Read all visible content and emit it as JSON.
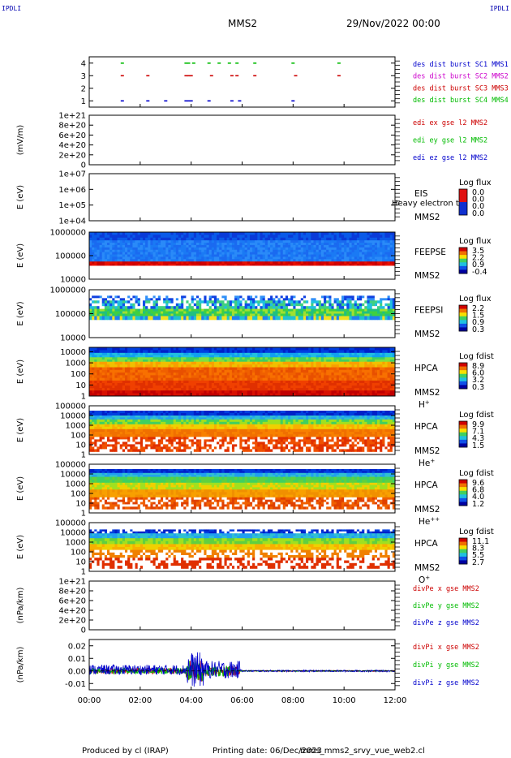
{
  "header": {
    "corner_left": "IPDLI",
    "corner_right": "IPDLI",
    "spacecraft": "MMS2",
    "date": "29/Nov/2022 00:00"
  },
  "footer": {
    "produced_by": "Produced by cl (IRAP)",
    "printing_date": "Printing date: 06/Dec/2023",
    "filename": "mms_mms2_srvy_vue_web2.cl"
  },
  "chart_data": {
    "type": "stacked-timeseries",
    "x_ticks": [
      "00:00",
      "02:00",
      "04:00",
      "06:00",
      "08:00",
      "10:00",
      "12:00"
    ],
    "xlim": [
      0,
      12
    ],
    "panels": [
      {
        "type": "scatter",
        "ylabel": "",
        "ylim": [
          0.5,
          4.5
        ],
        "y_ticks": [
          "1",
          "2",
          "3",
          "4"
        ],
        "legend": [
          {
            "label": "des dist burst SC1 MMS1",
            "color": "#0000cc"
          },
          {
            "label": "des dist burst SC2 MMS2",
            "color": "#cc00cc"
          },
          {
            "label": "des dist burst SC3 MMS3",
            "color": "#cc0000"
          },
          {
            "label": "des dist burst SC4 MMS4",
            "color": "#00bb00"
          }
        ],
        "series": [
          {
            "level": 4,
            "color": "#00bb00",
            "x": [
              1.3,
              3.8,
              3.9,
              4.1,
              4.7,
              5.1,
              5.5,
              5.8,
              6.5,
              8.0,
              9.8
            ]
          },
          {
            "level": 3,
            "color": "#cc0000",
            "x": [
              1.3,
              2.3,
              3.8,
              3.9,
              4.0,
              4.8,
              5.6,
              5.8,
              6.5,
              8.1,
              9.8
            ]
          },
          {
            "level": 2,
            "color": "#cc00cc",
            "x": []
          },
          {
            "level": 1,
            "color": "#0000cc",
            "x": [
              1.3,
              2.3,
              3.0,
              3.8,
              3.9,
              4.0,
              4.7,
              5.6,
              5.9,
              8.0
            ]
          }
        ]
      },
      {
        "type": "line",
        "ylabel": "(mV/m)",
        "y_ticks": [
          "0",
          "2e+20",
          "4e+20",
          "6e+20",
          "8e+20",
          "1e+21"
        ],
        "ylim": [
          0,
          1e+21
        ],
        "zero_dashed": true,
        "legend": [
          {
            "label": "edi ex gse l2 MMS2",
            "color": "#cc0000"
          },
          {
            "label": "edi ey gse l2 MMS2",
            "color": "#00bb00"
          },
          {
            "label": "edi ez gse l2 MMS2",
            "color": "#0000cc"
          }
        ]
      },
      {
        "type": "heatmap",
        "ylabel": "E (eV)",
        "y_ticks": [
          "1e+04",
          "1e+05",
          "1e+06",
          "1e+07"
        ],
        "ylog": [
          4,
          7
        ],
        "instrument": "EIS",
        "sc_label": "MMS2",
        "note": "Heavy electron to",
        "cbar_title": "Log flux",
        "cbar_ticks": [
          "0.0",
          "0.0",
          "0.0",
          "0.0"
        ],
        "empty": true
      },
      {
        "type": "heatmap",
        "ylabel": "E (eV)",
        "y_ticks": [
          "10000",
          "100000",
          "1000000"
        ],
        "ylog": [
          4,
          6
        ],
        "instrument": "FEEPSE",
        "sc_label": "MMS2",
        "cbar_title": "Log flux",
        "cbar_ticks": [
          "3.5",
          "2.2",
          "0.9",
          "-0.4"
        ],
        "bands": [
          {
            "from": 5.65,
            "to": 6.0,
            "colors": [
              "#0a3ad8",
              "#0a5ae8"
            ]
          },
          {
            "from": 4.75,
            "to": 5.65,
            "colors": [
              "#1a6af0",
              "#2a8af8",
              "#1a7af4"
            ]
          },
          {
            "from": 4.57,
            "to": 4.75,
            "colors": [
              "#d80000",
              "#e81000",
              "#c80000"
            ]
          },
          {
            "from": 4.0,
            "to": 4.57,
            "colors": [
              "#ffffff"
            ]
          }
        ]
      },
      {
        "type": "heatmap",
        "ylabel": "E (eV)",
        "y_ticks": [
          "10000",
          "100000",
          "1000000"
        ],
        "ylog": [
          4,
          6
        ],
        "instrument": "FEEPSI",
        "sc_label": "MMS2",
        "cbar_title": "Log flux",
        "cbar_ticks": [
          "2.2",
          "1.5",
          "0.9",
          "0.3"
        ],
        "bands": [
          {
            "from": 5.55,
            "to": 5.75,
            "colors": [
              "#ffffff",
              "#1040e0",
              "#3090f8",
              "#ffffff"
            ]
          },
          {
            "from": 5.2,
            "to": 5.55,
            "colors": [
              "#1050e8",
              "#20c0e0",
              "#40d080",
              "#ffffff"
            ]
          },
          {
            "from": 4.9,
            "to": 5.2,
            "colors": [
              "#40d040",
              "#a0e030",
              "#20c080"
            ]
          },
          {
            "from": 4.75,
            "to": 4.9,
            "colors": [
              "#20c0d0",
              "#2080f0",
              "#f0e020"
            ]
          }
        ]
      },
      {
        "type": "heatmap",
        "ylabel": "E (eV)",
        "y_ticks": [
          "1",
          "10",
          "100",
          "1000",
          "10000"
        ],
        "ylog": [
          0,
          4.4
        ],
        "instrument": "HPCA",
        "sc_label": "MMS2",
        "species": "H+",
        "cbar_title": "Log fdist",
        "cbar_ticks": [
          "8.9",
          "6.0",
          "3.2",
          "0.3"
        ],
        "bands": [
          {
            "from": 3.9,
            "to": 4.4,
            "colors": [
              "#0020c8",
              "#0040e0"
            ]
          },
          {
            "from": 3.5,
            "to": 3.9,
            "colors": [
              "#10a0f0",
              "#20c0e0"
            ]
          },
          {
            "from": 3.1,
            "to": 3.5,
            "colors": [
              "#40d060",
              "#80e040"
            ]
          },
          {
            "from": 2.6,
            "to": 3.1,
            "colors": [
              "#f0c000",
              "#f8a000"
            ]
          },
          {
            "from": 1.4,
            "to": 2.6,
            "colors": [
              "#f06000",
              "#f87000",
              "#e85000"
            ]
          },
          {
            "from": 0.5,
            "to": 1.4,
            "colors": [
              "#e03000",
              "#f04000"
            ]
          },
          {
            "from": 0.0,
            "to": 0.5,
            "colors": [
              "#c00000",
              "#d81000"
            ]
          }
        ]
      },
      {
        "type": "heatmap",
        "ylabel": "E (eV)",
        "y_ticks": [
          "1",
          "10",
          "100",
          "1000",
          "10000",
          "100000"
        ],
        "ylog": [
          0,
          5
        ],
        "instrument": "HPCA",
        "sc_label": "MMS2",
        "species": "He+",
        "cbar_title": "Log fdist",
        "cbar_ticks": [
          "9.9",
          "7.1",
          "4.3",
          "1.5"
        ],
        "bands": [
          {
            "from": 4.0,
            "to": 4.5,
            "colors": [
              "#0020c8",
              "#0040e0"
            ]
          },
          {
            "from": 3.6,
            "to": 4.0,
            "colors": [
              "#20a0f0",
              "#30c0d0"
            ]
          },
          {
            "from": 3.1,
            "to": 3.6,
            "colors": [
              "#40d060",
              "#a0e020"
            ]
          },
          {
            "from": 2.6,
            "to": 3.1,
            "colors": [
              "#f0d000",
              "#f8b000"
            ]
          },
          {
            "from": 1.8,
            "to": 2.6,
            "colors": [
              "#f07000",
              "#f88000"
            ]
          },
          {
            "from": 0.3,
            "to": 1.8,
            "colors": [
              "#e03000",
              "#ffffff",
              "#f05000"
            ]
          }
        ]
      },
      {
        "type": "heatmap",
        "ylabel": "E (eV)",
        "y_ticks": [
          "1",
          "10",
          "100",
          "1000",
          "10000",
          "100000"
        ],
        "ylog": [
          0,
          5
        ],
        "instrument": "HPCA",
        "sc_label": "MMS2",
        "species": "He++",
        "cbar_title": "Log fdist",
        "cbar_ticks": [
          "9.6",
          "6.8",
          "4.0",
          "1.2"
        ],
        "bands": [
          {
            "from": 4.1,
            "to": 4.5,
            "colors": [
              "#0020c8",
              "#0040e0"
            ]
          },
          {
            "from": 3.7,
            "to": 4.1,
            "colors": [
              "#20a0f0",
              "#30c0d0"
            ]
          },
          {
            "from": 3.1,
            "to": 3.7,
            "colors": [
              "#40d060",
              "#60d040"
            ]
          },
          {
            "from": 2.4,
            "to": 3.1,
            "colors": [
              "#a0e020",
              "#f0d000"
            ]
          },
          {
            "from": 1.6,
            "to": 2.4,
            "colors": [
              "#f09000",
              "#f8a000"
            ]
          },
          {
            "from": 0.4,
            "to": 1.6,
            "colors": [
              "#e04000",
              "#ffffff",
              "#f06000"
            ]
          }
        ]
      },
      {
        "type": "heatmap",
        "ylabel": "E (eV)",
        "y_ticks": [
          "1",
          "10",
          "100",
          "1000",
          "10000",
          "100000"
        ],
        "ylog": [
          0,
          5
        ],
        "instrument": "HPCA",
        "sc_label": "MMS2",
        "species": "O+",
        "cbar_title": "Log fdist",
        "cbar_ticks": [
          "11.1",
          "8.3",
          "5.5",
          "2.7"
        ],
        "bands": [
          {
            "from": 3.9,
            "to": 4.3,
            "colors": [
              "#0020c8",
              "#ffffff",
              "#0040e0"
            ]
          },
          {
            "from": 3.4,
            "to": 3.9,
            "colors": [
              "#20a0f0",
              "#30c0d0"
            ]
          },
          {
            "from": 2.8,
            "to": 3.4,
            "colors": [
              "#60d040",
              "#a0e020"
            ]
          },
          {
            "from": 2.2,
            "to": 2.8,
            "colors": [
              "#f0d000",
              "#f8b000"
            ]
          },
          {
            "from": 1.4,
            "to": 2.2,
            "colors": [
              "#f08000",
              "#ffffff"
            ]
          },
          {
            "from": 0.3,
            "to": 1.4,
            "colors": [
              "#e03000",
              "#ffffff"
            ]
          }
        ]
      },
      {
        "type": "line",
        "ylabel": "(nPa/km)",
        "y_ticks": [
          "0",
          "2e+20",
          "4e+20",
          "6e+20",
          "8e+20",
          "1e+21"
        ],
        "ylim": [
          0,
          1e+21
        ],
        "zero_dashed": true,
        "legend": [
          {
            "label": "divPe x gse MMS2",
            "color": "#cc0000"
          },
          {
            "label": "divPe y gse MMS2",
            "color": "#00bb00"
          },
          {
            "label": "divPe z gse MMS2",
            "color": "#0000cc"
          }
        ]
      },
      {
        "type": "line",
        "ylabel": "(nPa/km)",
        "y_ticks": [
          "-0.01",
          "0.00",
          "0.01",
          "0.02"
        ],
        "ylim": [
          -0.015,
          0.025
        ],
        "zero_dashed": true,
        "legend": [
          {
            "label": "divPi x gse MMS2",
            "color": "#cc0000"
          },
          {
            "label": "divPi y gse MMS2",
            "color": "#00bb00"
          },
          {
            "label": "divPi z gse MMS2",
            "color": "#0000cc"
          }
        ],
        "activity": [
          {
            "from": 0.0,
            "to": 3.8,
            "amp": 0.004
          },
          {
            "from": 3.8,
            "to": 4.5,
            "amp": 0.014
          },
          {
            "from": 4.5,
            "to": 5.9,
            "amp": 0.007
          },
          {
            "from": 5.9,
            "to": 12.0,
            "amp": 0.0007
          }
        ]
      }
    ]
  }
}
